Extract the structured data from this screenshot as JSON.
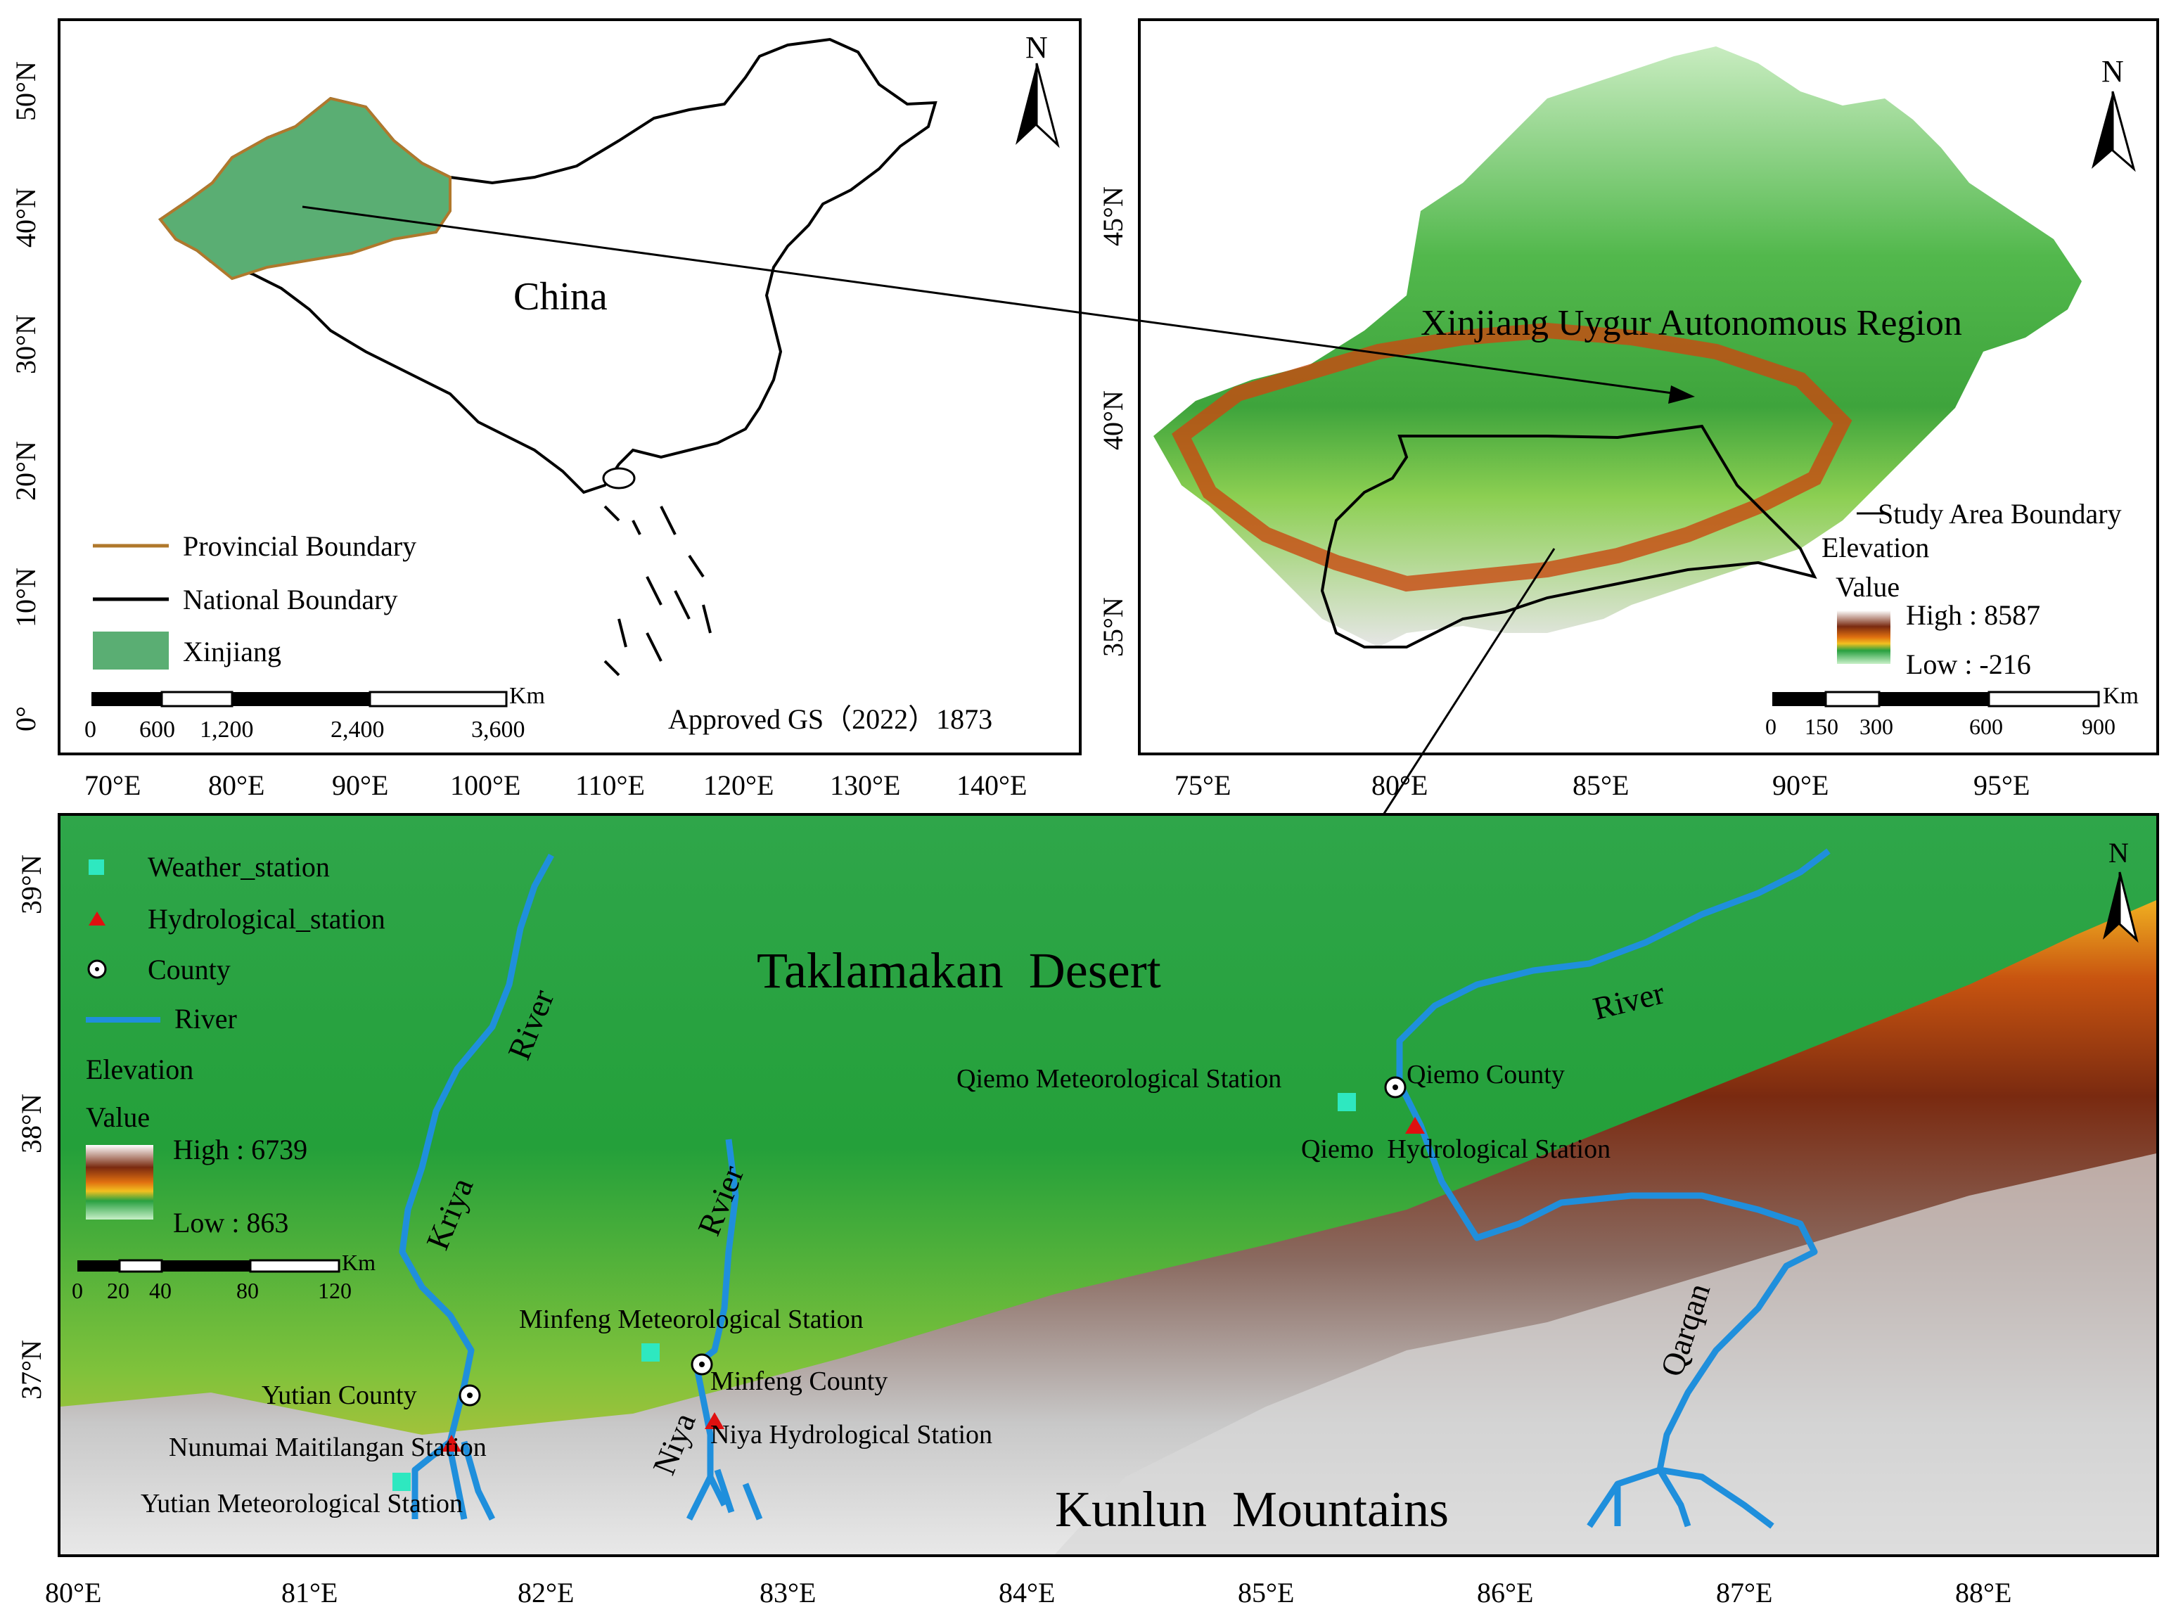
{
  "panel_a": {
    "north": "N",
    "country_label": "China",
    "approval": "Approved GS（2022）1873",
    "x_ticks": [
      "70°E",
      "80°E",
      "90°E",
      "100°E",
      "110°E",
      "120°E",
      "130°E",
      "140°E"
    ],
    "y_ticks": [
      "50°N",
      "40°N",
      "30°N",
      "20°N",
      "10°N",
      "0°"
    ],
    "legend": [
      {
        "label": "Provincial Boundary",
        "symbol": "line",
        "color": "#b0782c"
      },
      {
        "label": "National Boundary",
        "symbol": "line",
        "color": "#000000"
      },
      {
        "label": "Xinjiang",
        "symbol": "fill",
        "color": "#5aae73"
      }
    ],
    "scale_unit": "Km",
    "scale_labels": [
      "0",
      "600",
      "1,200",
      "2,400",
      "3,600"
    ]
  },
  "panel_b": {
    "north": "N",
    "region_label": "Xinjiang Uygur Autonomous Region",
    "boundary_label": "Study Area Boundary",
    "elevation_title": "Elevation",
    "value_title": "Value",
    "high": "High : 8587",
    "low": "Low : -216",
    "x_ticks": [
      "75°E",
      "80°E",
      "85°E",
      "90°E",
      "95°E"
    ],
    "y_ticks": [
      "45°N",
      "40°N",
      "35°N"
    ],
    "scale_unit": "Km",
    "scale_labels": [
      "0",
      "150",
      "300",
      "600",
      "900"
    ]
  },
  "panel_c": {
    "north": "N",
    "desert_label": "Taklamakan  Desert",
    "mountain_label": "Kunlun  Mountains",
    "legend": [
      {
        "label": "Weather_station",
        "symbol": "square",
        "color": "#2ee8c0"
      },
      {
        "label": "Hydrological_station",
        "symbol": "triangle",
        "color": "#e01010"
      },
      {
        "label": "County",
        "symbol": "circle",
        "color": "#ffffff"
      },
      {
        "label": "River",
        "symbol": "line",
        "color": "#1f8fdc"
      }
    ],
    "elevation_title": "Elevation",
    "value_title": "Value",
    "high": "High : 6739",
    "low": "Low : 863",
    "scale_unit": "Km",
    "scale_labels": [
      "0",
      "20",
      "40",
      "80",
      "120"
    ],
    "x_ticks": [
      "80°E",
      "81°E",
      "82°E",
      "83°E",
      "84°E",
      "85°E",
      "86°E",
      "87°E",
      "88°E"
    ],
    "y_ticks": [
      "39°N",
      "38°N",
      "37°N"
    ],
    "river_labels": [
      "River",
      "Kriya",
      "Rvier",
      "Niya",
      "River",
      "Qarqan"
    ],
    "places": [
      "Qiemo Meteorological Station",
      "Qiemo County",
      "Qiemo  Hydrological Station",
      "Minfeng Meteorological Station",
      "Minfeng County",
      "Niya Hydrological Station",
      "Yutian County",
      "Nunumai Maitilangan Station",
      "Yutian Meteorological Station"
    ]
  }
}
